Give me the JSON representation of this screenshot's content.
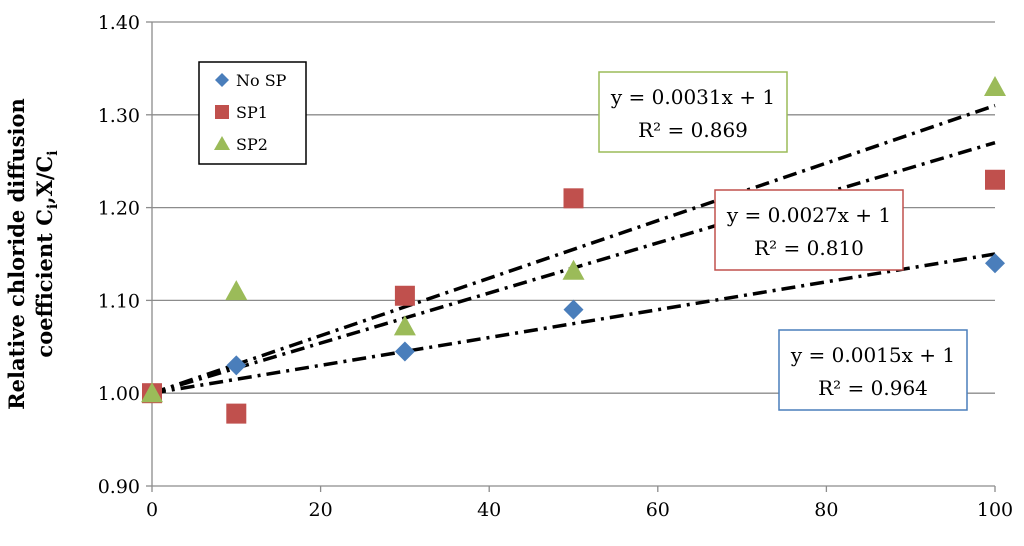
{
  "chart_data": {
    "type": "scatter",
    "ylabel_line1": "Relative chloride diffusion",
    "ylabel_line2": "coefficient C",
    "ylabel_sub1": "i",
    "ylabel_mid": ",X/C",
    "ylabel_sub2": "i",
    "xlim": [
      0,
      100
    ],
    "ylim": [
      0.9,
      1.4
    ],
    "x_ticks": [
      0,
      20,
      40,
      60,
      80,
      100
    ],
    "x_tick_labels": [
      "0",
      "20",
      "40",
      "60",
      "80",
      "100"
    ],
    "y_ticks": [
      0.9,
      1.0,
      1.1,
      1.2,
      1.3,
      1.4
    ],
    "y_tick_labels": [
      "0.90",
      "1.00",
      "1.10",
      "1.20",
      "1.30",
      "1.40"
    ],
    "grid": "horizontal",
    "legend_position": "top-left",
    "series": [
      {
        "name": "No SP",
        "marker": "diamond",
        "color": "#4a7ebb",
        "x": [
          0,
          10,
          30,
          50,
          100
        ],
        "y": [
          1.0,
          1.03,
          1.045,
          1.09,
          1.14
        ],
        "trend": {
          "slope": 0.0015,
          "intercept": 1,
          "equation": "y = 0.0015x + 1",
          "r2": "R² = 0.964",
          "box_color": "#4a7ebb"
        }
      },
      {
        "name": "SP1",
        "marker": "square",
        "color": "#c0504d",
        "x": [
          0,
          10,
          30,
          50,
          100
        ],
        "y": [
          1.0,
          0.978,
          1.105,
          1.21,
          1.23
        ],
        "trend": {
          "slope": 0.0027,
          "intercept": 1,
          "equation": "y = 0.0027x + 1",
          "r2": "R² = 0.810",
          "box_color": "#c0504d"
        }
      },
      {
        "name": "SP2",
        "marker": "triangle",
        "color": "#9bbb59",
        "x": [
          0,
          10,
          30,
          50,
          100
        ],
        "y": [
          1.0,
          1.11,
          1.072,
          1.132,
          1.33
        ],
        "trend": {
          "slope": 0.0031,
          "intercept": 1,
          "equation": "y = 0.0031x + 1",
          "r2": "R² = 0.869",
          "box_color": "#9bbb59"
        }
      }
    ]
  }
}
